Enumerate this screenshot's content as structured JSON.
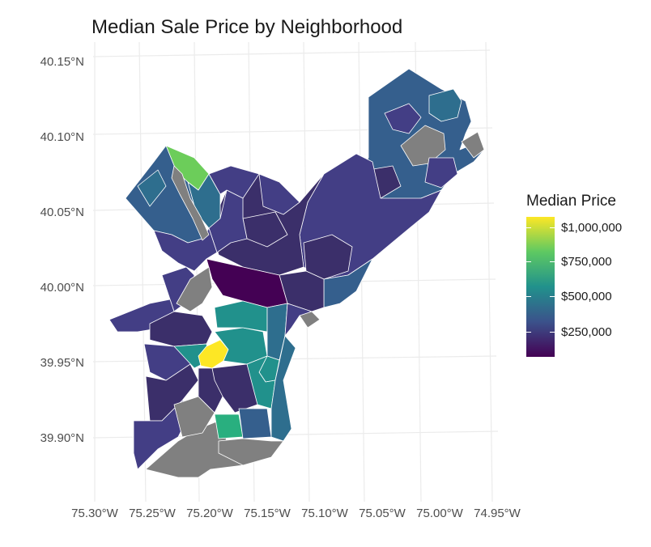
{
  "title": "Median Sale Price by Neighborhood",
  "legend": {
    "title": "Median Price",
    "labels": [
      "$1,000,000",
      "$750,000",
      "$500,000",
      "$250,000"
    ],
    "values": [
      1000000,
      750000,
      500000,
      250000
    ],
    "colors": [
      "#440154",
      "#3b528b",
      "#21918c",
      "#5ec962",
      "#fde725"
    ]
  },
  "axes": {
    "y_labels": [
      "40.15°N",
      "40.10°N",
      "40.05°N",
      "40.00°N",
      "39.95°N",
      "39.90°N"
    ],
    "x_labels": [
      "75.30°W",
      "75.25°W",
      "75.20°W",
      "75.15°W",
      "75.10°W",
      "75.05°W",
      "75.00°W",
      "74.95°W"
    ]
  },
  "colors": {
    "no_data": "#808080",
    "border": "#ffffff",
    "grid": "#ebebeb",
    "dark_purple": "#440154",
    "purple": "#3b2f6a",
    "indigo": "#433e85",
    "blue": "#355f8d",
    "steel": "#2e6e8e",
    "teal": "#21918c",
    "green_teal": "#29af7f",
    "light_green": "#6ccd5a",
    "yellow": "#fde725"
  }
}
